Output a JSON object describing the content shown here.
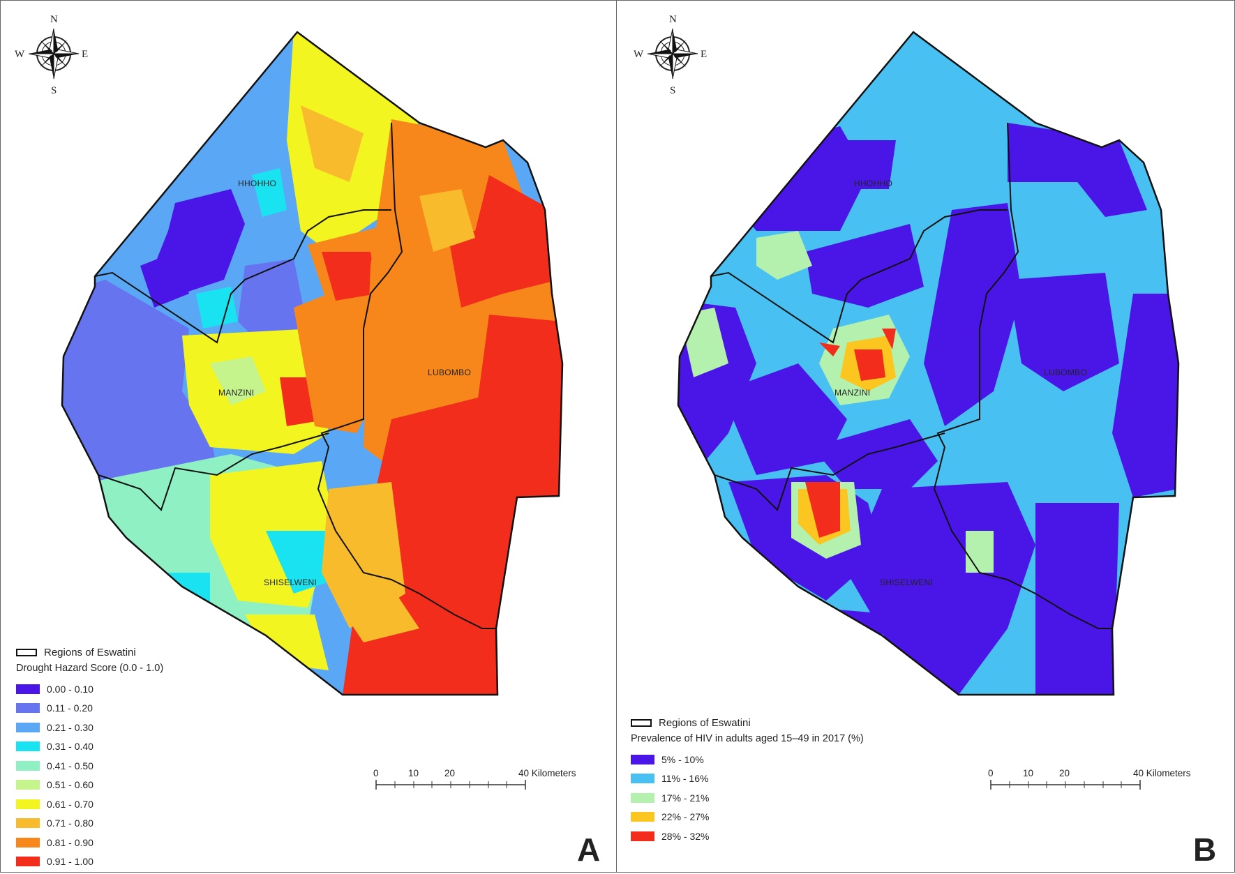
{
  "panels": [
    {
      "letter": "A",
      "regions": [
        "HHOHHO",
        "MANZINI",
        "LUBOMBO",
        "SHISELWENI"
      ],
      "boundary_label": "Regions of Eswatini",
      "legend_title": "Drought Hazard Score (0.0 - 1.0)",
      "classes": [
        {
          "label": "0.00 - 0.10",
          "color": "#4a16e8"
        },
        {
          "label": "0.11 - 0.20",
          "color": "#6674f0"
        },
        {
          "label": "0.21 - 0.30",
          "color": "#5aa8f5"
        },
        {
          "label": "0.31 - 0.40",
          "color": "#19e3f0"
        },
        {
          "label": "0.41 - 0.50",
          "color": "#8ff0c4"
        },
        {
          "label": "0.51 - 0.60",
          "color": "#c6f48c"
        },
        {
          "label": "0.61 - 0.70",
          "color": "#f2f51f"
        },
        {
          "label": "0.71 - 0.80",
          "color": "#f8bb2c"
        },
        {
          "label": "0.81 - 0.90",
          "color": "#f7871a"
        },
        {
          "label": "0.91 - 1.00",
          "color": "#f22d1b"
        }
      ],
      "scale": {
        "ticks": [
          "0",
          "10",
          "20",
          "40 Kilometers"
        ]
      },
      "compass": {
        "n": "N",
        "s": "S",
        "e": "E",
        "w": "W"
      }
    },
    {
      "letter": "B",
      "regions": [
        "HHOHHO",
        "MANZINI",
        "LUBOMBO",
        "SHISELWENI"
      ],
      "boundary_label": "Regions of Eswatini",
      "legend_title": "Prevalence of HIV in adults aged 15–49 in 2017 (%)",
      "classes": [
        {
          "label": "5% - 10%",
          "color": "#4a16e8"
        },
        {
          "label": "11% - 16%",
          "color": "#49c0f2"
        },
        {
          "label": "17% - 21%",
          "color": "#b4f0ae"
        },
        {
          "label": "22% - 27%",
          "color": "#fbc61f"
        },
        {
          "label": "28% - 32%",
          "color": "#f22d1b"
        }
      ],
      "scale": {
        "ticks": [
          "0",
          "10",
          "20",
          "40 Kilometers"
        ]
      },
      "compass": {
        "n": "N",
        "s": "S",
        "e": "E",
        "w": "W"
      }
    }
  ]
}
